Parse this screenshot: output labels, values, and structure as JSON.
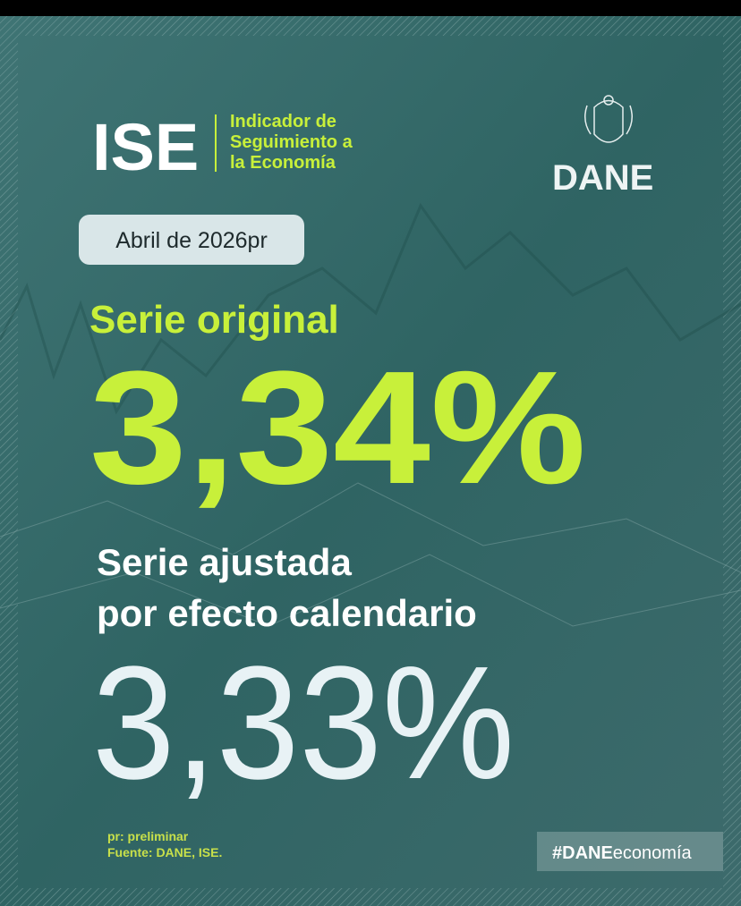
{
  "header": {
    "acronym": "ISE",
    "subtitle_lines": [
      "Indicador de",
      "Seguimiento a",
      "la Economía"
    ],
    "logo_text": "DANE"
  },
  "period": "Abril de 2026pr",
  "original": {
    "label": "Serie original",
    "value": "3,34%"
  },
  "adjusted": {
    "label_lines": [
      "Serie ajustada",
      "por efecto calendario"
    ],
    "value": "3,33%"
  },
  "footer": {
    "notes": [
      "pr: preliminar",
      "Fuente: DANE, ISE."
    ],
    "hashtag_bold": "#DANE",
    "hashtag_rest": "economía"
  }
}
